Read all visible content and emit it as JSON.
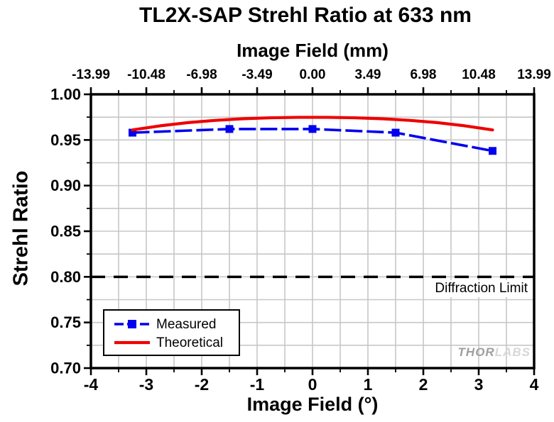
{
  "watermark": {
    "thor": "THOR",
    "labs": "LABS"
  },
  "chart_data": {
    "type": "line",
    "title": "TL2X-SAP Strehl Ratio at 633 nm",
    "top_axis": {
      "label": "Image Field (mm)",
      "tick_labels": [
        "-13.99",
        "-10.48",
        "-6.98",
        "-3.49",
        "0.00",
        "3.49",
        "6.98",
        "10.48",
        "13.99"
      ],
      "tick_positions_deg": [
        -4,
        -3,
        -2,
        -1,
        0,
        1,
        2,
        3,
        4
      ]
    },
    "bottom_axis": {
      "label": "Image Field (°)",
      "tick_labels": [
        "-4",
        "-3",
        "-2",
        "-1",
        "0",
        "1",
        "2",
        "3",
        "4"
      ],
      "tick_positions_deg": [
        -4,
        -3,
        -2,
        -1,
        0,
        1,
        2,
        3,
        4
      ],
      "minor_tick_step_deg": 0.5,
      "range_deg": [
        -4,
        4
      ]
    },
    "y_axis": {
      "label": "Strehl Ratio",
      "tick_labels": [
        "1.00",
        "0.95",
        "0.90",
        "0.85",
        "0.80",
        "0.75",
        "0.70"
      ],
      "tick_values": [
        1.0,
        0.95,
        0.9,
        0.85,
        0.8,
        0.75,
        0.7
      ],
      "minor_tick_step": 0.025,
      "range": [
        0.7,
        1.0
      ]
    },
    "grid": {
      "x_step_deg": 0.5,
      "y_step": 0.025,
      "color": "#c7c7c7",
      "on": true
    },
    "series": [
      {
        "name": "Measured",
        "color": "#0000ee",
        "line_style": "dashed",
        "marker": "square",
        "x_deg": [
          -3.25,
          -1.5,
          0,
          1.5,
          3.25
        ],
        "y": [
          0.958,
          0.962,
          0.962,
          0.958,
          0.938
        ]
      },
      {
        "name": "Theoretical",
        "color": "#ee0000",
        "line_style": "solid",
        "marker": "none",
        "x_deg": [
          -3.25,
          -2.75,
          -2.25,
          -1.75,
          -1.25,
          -0.75,
          -0.25,
          0.25,
          0.75,
          1.25,
          1.75,
          2.25,
          2.75,
          3.25
        ],
        "y": [
          0.961,
          0.9655,
          0.969,
          0.9715,
          0.9733,
          0.9743,
          0.9748,
          0.9748,
          0.9743,
          0.9733,
          0.9715,
          0.969,
          0.9655,
          0.961
        ]
      }
    ],
    "reference_line": {
      "label": "Diffraction Limit",
      "y": 0.8,
      "color": "#000000",
      "style": "dashed"
    },
    "legend": {
      "position": "bottom-left",
      "border": true
    }
  }
}
